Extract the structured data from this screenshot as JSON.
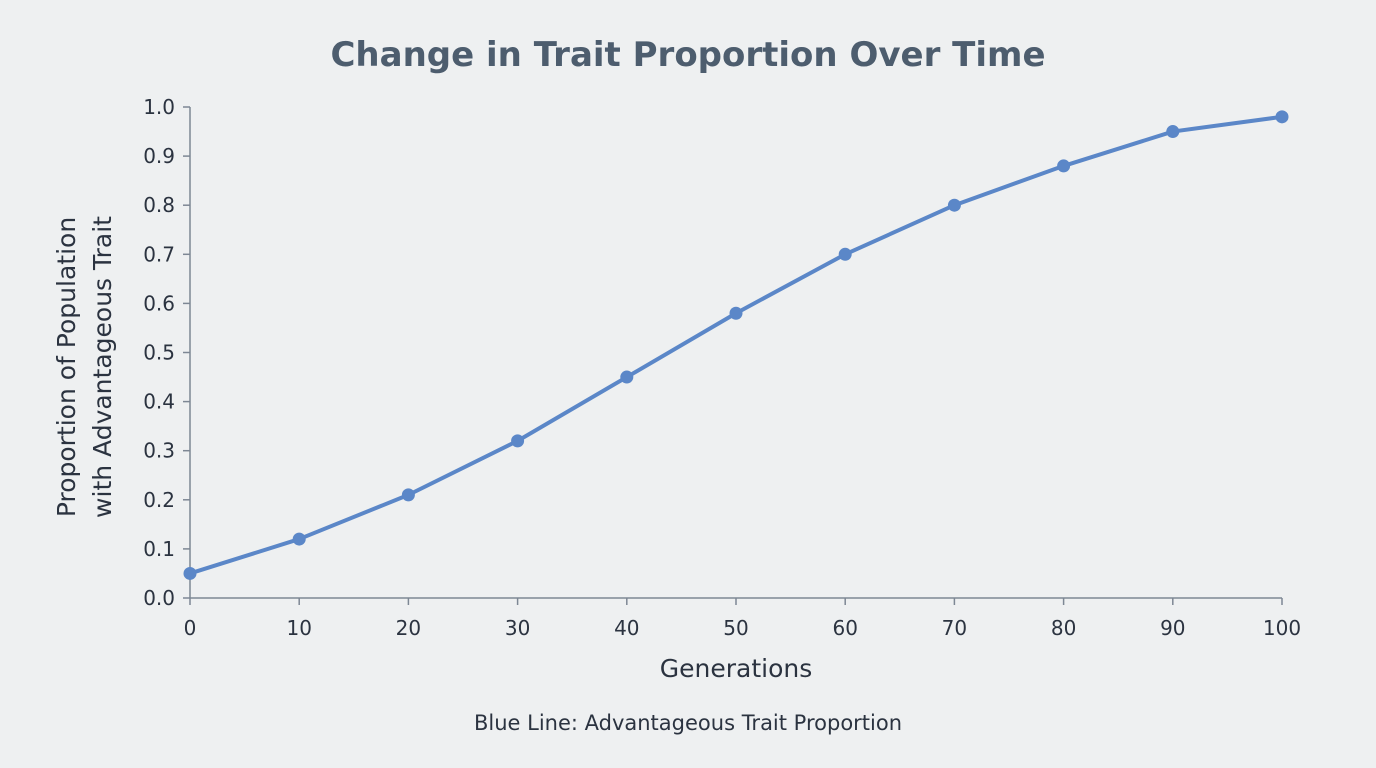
{
  "chart_data": {
    "type": "line",
    "title": "Change in Trait Proportion Over Time",
    "xlabel": "Generations",
    "ylabel": [
      "Proportion of Population",
      "with Advantageous Trait"
    ],
    "caption": "Blue Line: Advantageous Trait Proportion",
    "xlim": [
      0,
      100
    ],
    "ylim": [
      0,
      1.0
    ],
    "xticks": [
      0,
      10,
      20,
      30,
      40,
      50,
      60,
      70,
      80,
      90,
      100
    ],
    "yticks": [
      "0.0",
      "0.1",
      "0.2",
      "0.3",
      "0.4",
      "0.5",
      "0.6",
      "0.7",
      "0.8",
      "0.9",
      "1.0"
    ],
    "grid": false,
    "series": [
      {
        "x": [
          0,
          10,
          20,
          30,
          40,
          50,
          60,
          70,
          80,
          90,
          100
        ],
        "values": [
          0.05,
          0.12,
          0.21,
          0.32,
          0.45,
          0.58,
          0.7,
          0.8,
          0.88,
          0.95,
          0.98
        ],
        "color": "#5b87c8"
      }
    ],
    "axis_color": "#7d8794"
  }
}
